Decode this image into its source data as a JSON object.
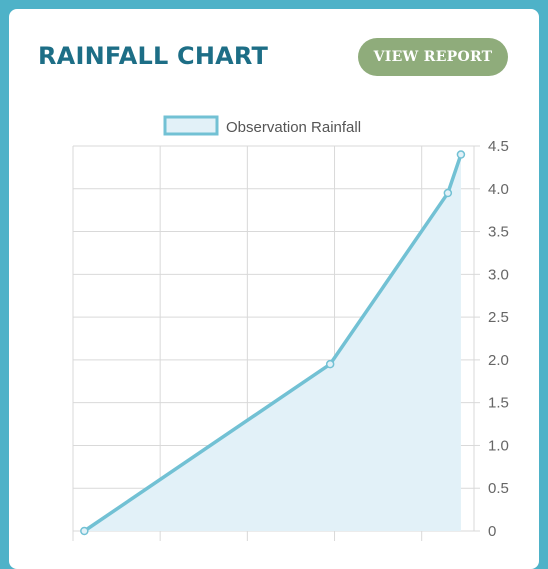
{
  "header": {
    "title": "RAINFALL CHART",
    "button_label": "VIEW REPORT"
  },
  "colors": {
    "frame": "#4eb2c8",
    "title": "#1d6e86",
    "button": "#8fac7b",
    "line": "#72c1d4",
    "fill": "#e2f1f8",
    "grid": "#d9d9d9"
  },
  "chart_data": {
    "type": "area",
    "title": "",
    "xlabel": "",
    "ylabel": "",
    "legend_position": "top-center",
    "grid": true,
    "y_axis_side": "right",
    "ylim": [
      0,
      4.5
    ],
    "yticks": [
      0,
      0.5,
      1.0,
      1.5,
      2.0,
      2.5,
      3.0,
      3.5,
      4.0,
      4.5
    ],
    "ytick_labels": [
      "0",
      "0.5",
      "1.0",
      "1.5",
      "2.0",
      "2.5",
      "3.0",
      "3.5",
      "4.0",
      "4.5"
    ],
    "xlim": [
      0,
      4.6
    ],
    "x_gridlines": [
      1,
      2,
      3,
      4
    ],
    "series": [
      {
        "name": "Observation Rainfall",
        "points": [
          {
            "x": 0.13,
            "y": 0
          },
          {
            "x": 2.95,
            "y": 1.95
          },
          {
            "x": 4.3,
            "y": 3.95
          },
          {
            "x": 4.45,
            "y": 4.4
          }
        ]
      }
    ]
  }
}
